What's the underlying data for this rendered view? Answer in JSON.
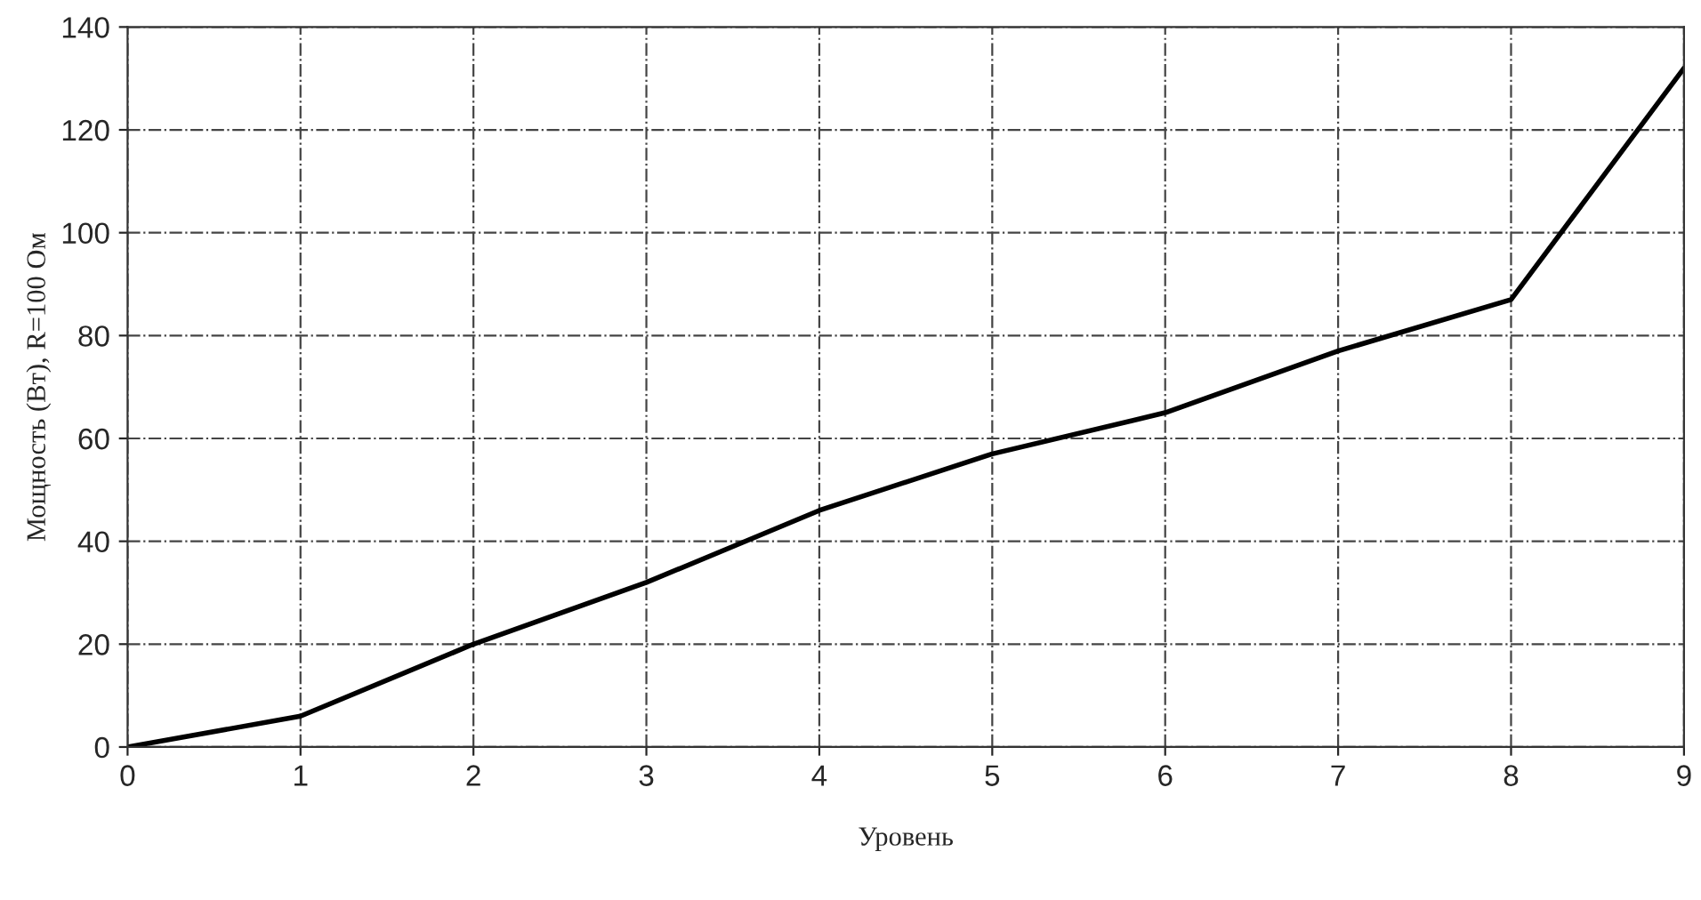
{
  "chart_data": {
    "type": "line",
    "xlabel": "Уровень",
    "ylabel": "Мощность (Вт), R=100 Ом",
    "x": [
      0,
      1,
      2,
      3,
      4,
      5,
      6,
      7,
      8,
      9
    ],
    "series": [
      {
        "color": "#000000",
        "values": [
          0,
          6,
          20,
          32,
          46,
          57,
          65,
          77,
          87,
          132
        ]
      }
    ],
    "xlim": [
      0,
      9
    ],
    "xticks": [
      0,
      1,
      2,
      3,
      4,
      5,
      6,
      7,
      8,
      9
    ],
    "ylim": [
      0,
      140
    ],
    "yticks": [
      0,
      20,
      40,
      60,
      80,
      100,
      120,
      140
    ],
    "grid": true,
    "line_style": "solid"
  }
}
